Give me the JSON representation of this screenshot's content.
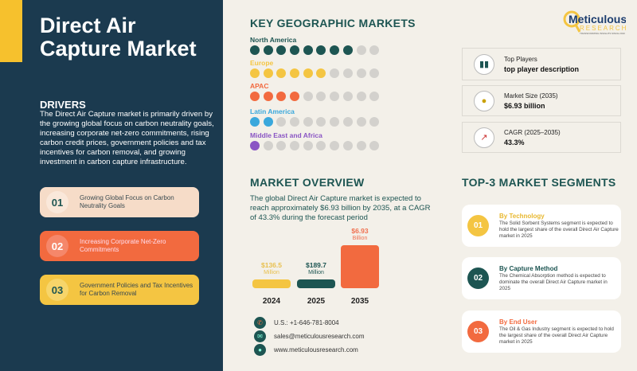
{
  "title": "Direct Air Capture Market",
  "drivers": {
    "heading": "DRIVERS",
    "text": "The Direct Air Capture market is primarily driven by the growing global focus on carbon neutrality goals, increasing corporate net-zero commitments, rising carbon credit prices, government policies and tax incentives for carbon removal, and growing investment in carbon capture infrastructure.",
    "items": [
      {
        "num": "01",
        "label": "Growing Global Focus on Carbon Neutrality Goals"
      },
      {
        "num": "02",
        "label": "Increasing Corporate Net-Zero Commitments"
      },
      {
        "num": "03",
        "label": "Government Policies and Tax Incentives for Carbon Removal"
      }
    ]
  },
  "geo": {
    "heading": "KEY GEOGRAPHIC MARKETS",
    "regions": [
      {
        "name": "North America",
        "filled": 8,
        "total": 10,
        "color": "#1d5552"
      },
      {
        "name": "Europe",
        "filled": 6,
        "total": 10,
        "color": "#f4c542"
      },
      {
        "name": "APAC",
        "filled": 4,
        "total": 10,
        "color": "#f26a3f"
      },
      {
        "name": "Latin America",
        "filled": 2,
        "total": 10,
        "color": "#3aa8dc"
      },
      {
        "name": "Middle East and Africa",
        "filled": 1,
        "total": 10,
        "color": "#8a55c4"
      }
    ]
  },
  "logo": {
    "name": "Meticulous",
    "sub": "RESEARCH",
    "tagline": "TRANSFORMING INSIGHTS SINCE 2010"
  },
  "stats": [
    {
      "icon": "bar-chart-icon",
      "label": "Top Players",
      "value": "top player description"
    },
    {
      "icon": "money-bag-icon",
      "label": "Market Size (2035)",
      "value": "$6.93 billion"
    },
    {
      "icon": "growth-chart-icon",
      "label": "CAGR (2025–2035)",
      "value": "43.3%"
    }
  ],
  "overview": {
    "heading": "MARKET OVERVIEW",
    "text": "The global Direct Air Capture market is expected to reach approximately $6.93 billion by 2035, at a CAGR of 43.3% during the forecast period"
  },
  "chart_data": {
    "type": "bar",
    "categories": [
      "2024",
      "2025",
      "2035"
    ],
    "values": [
      0.1365,
      0.1897,
      6.93
    ],
    "unit": "USD billion",
    "labels": [
      {
        "value": "$136.5",
        "unit": "Million"
      },
      {
        "value": "$189.7",
        "unit": "Million"
      },
      {
        "value": "$6.93",
        "unit": "Billion"
      }
    ],
    "colors": [
      "#f4c542",
      "#1d5552",
      "#f26a3f"
    ]
  },
  "contact": [
    {
      "icon": "phone-icon",
      "text": "U.S.: +1-646-781-8004"
    },
    {
      "icon": "email-icon",
      "text": "sales@meticulousresearch.com"
    },
    {
      "icon": "globe-icon",
      "text": "www.meticulousresearch.com"
    }
  ],
  "segments": {
    "heading": "TOP-3 MARKET SEGMENTS",
    "items": [
      {
        "num": "01",
        "title": "By Technology",
        "text": "The Solid Sorbent Systems segment is expected to hold the largest share of the overall Direct Air Capture market in 2025",
        "color": "#f4c542"
      },
      {
        "num": "02",
        "title": "By Capture Method",
        "text": "The Chemical Absorption method is expected to dominate the overall Direct Air Capture market in 2025",
        "color": "#1d5552"
      },
      {
        "num": "03",
        "title": "By End User",
        "text": "The Oil & Gas Industry segment is expected to hold the largest share of the overall Direct Air Capture market in 2025",
        "color": "#f26a3f"
      }
    ]
  }
}
